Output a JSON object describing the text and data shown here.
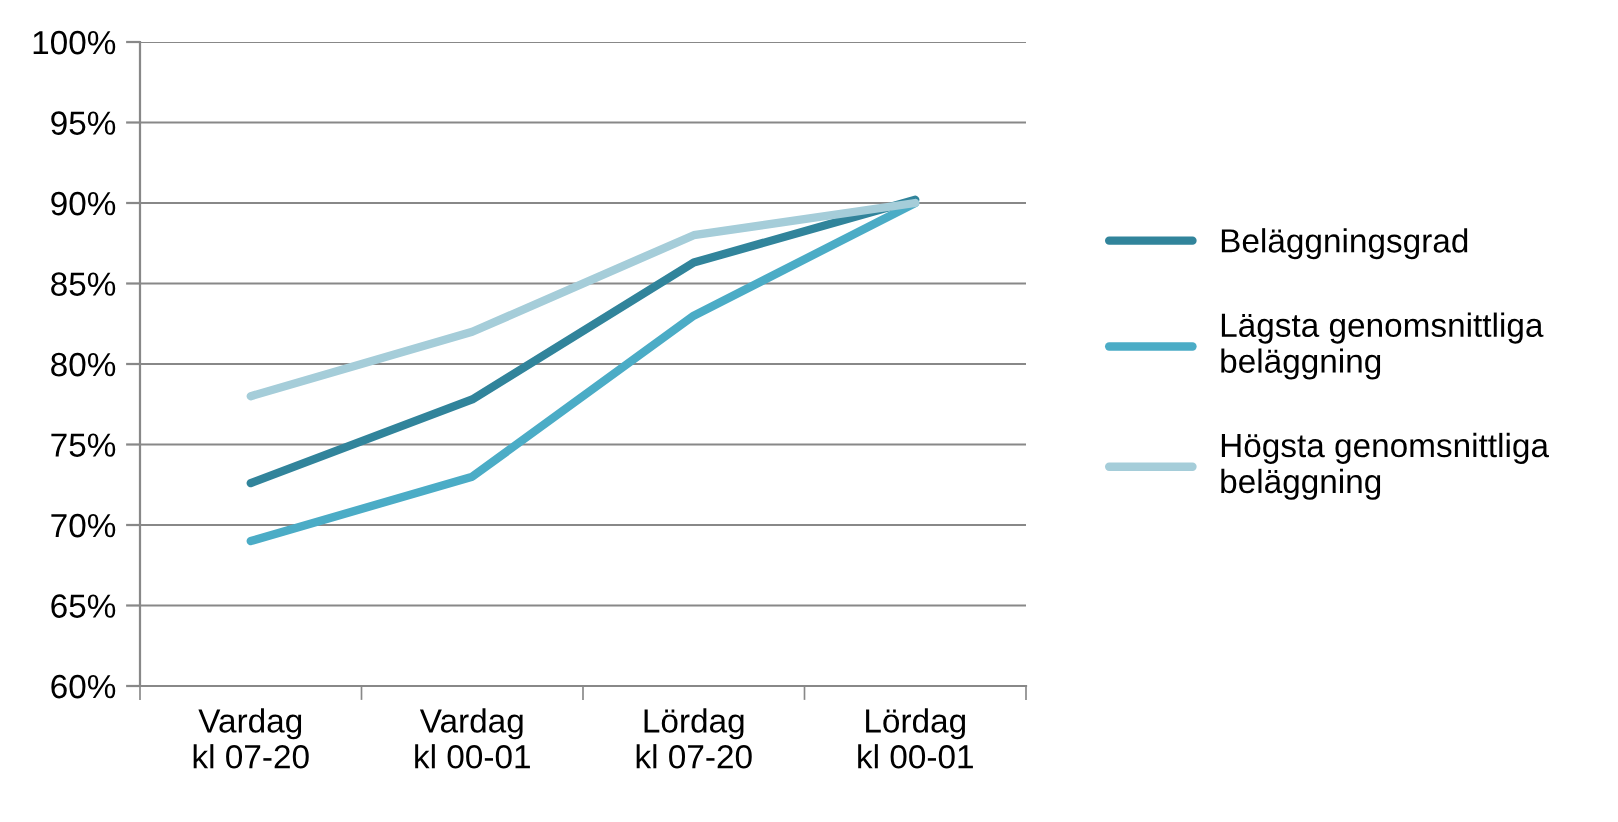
{
  "chart_data": {
    "type": "line",
    "categories": [
      "Vardag\nkl 07-20",
      "Vardag\nkl 00-01",
      "Lördag\nkl 07-20",
      "Lördag\nkl 00-01"
    ],
    "series": [
      {
        "name": "Beläggningsgrad",
        "color": "#31849b",
        "values": [
          72.6,
          77.8,
          86.3,
          90.2
        ]
      },
      {
        "name": "Lägsta genomsnittliga beläggning",
        "color": "#4bacc6",
        "values": [
          69.0,
          73.0,
          83.0,
          90.0
        ]
      },
      {
        "name": "Högsta genomsnittliga beläggning",
        "color": "#a5cdd9",
        "values": [
          78.0,
          82.0,
          88.0,
          90.0
        ]
      }
    ],
    "ylim": [
      60,
      100
    ],
    "yticks": [
      {
        "value": 60,
        "label": "60%"
      },
      {
        "value": 65,
        "label": "65%"
      },
      {
        "value": 70,
        "label": "70%"
      },
      {
        "value": 75,
        "label": "75%"
      },
      {
        "value": 80,
        "label": "80%"
      },
      {
        "value": 85,
        "label": "85%"
      },
      {
        "value": 90,
        "label": "90%"
      },
      {
        "value": 95,
        "label": "95%"
      },
      {
        "value": 100,
        "label": "100%"
      }
    ],
    "grid": "y",
    "legend": "right",
    "marker": "none",
    "line_style": "solid"
  }
}
